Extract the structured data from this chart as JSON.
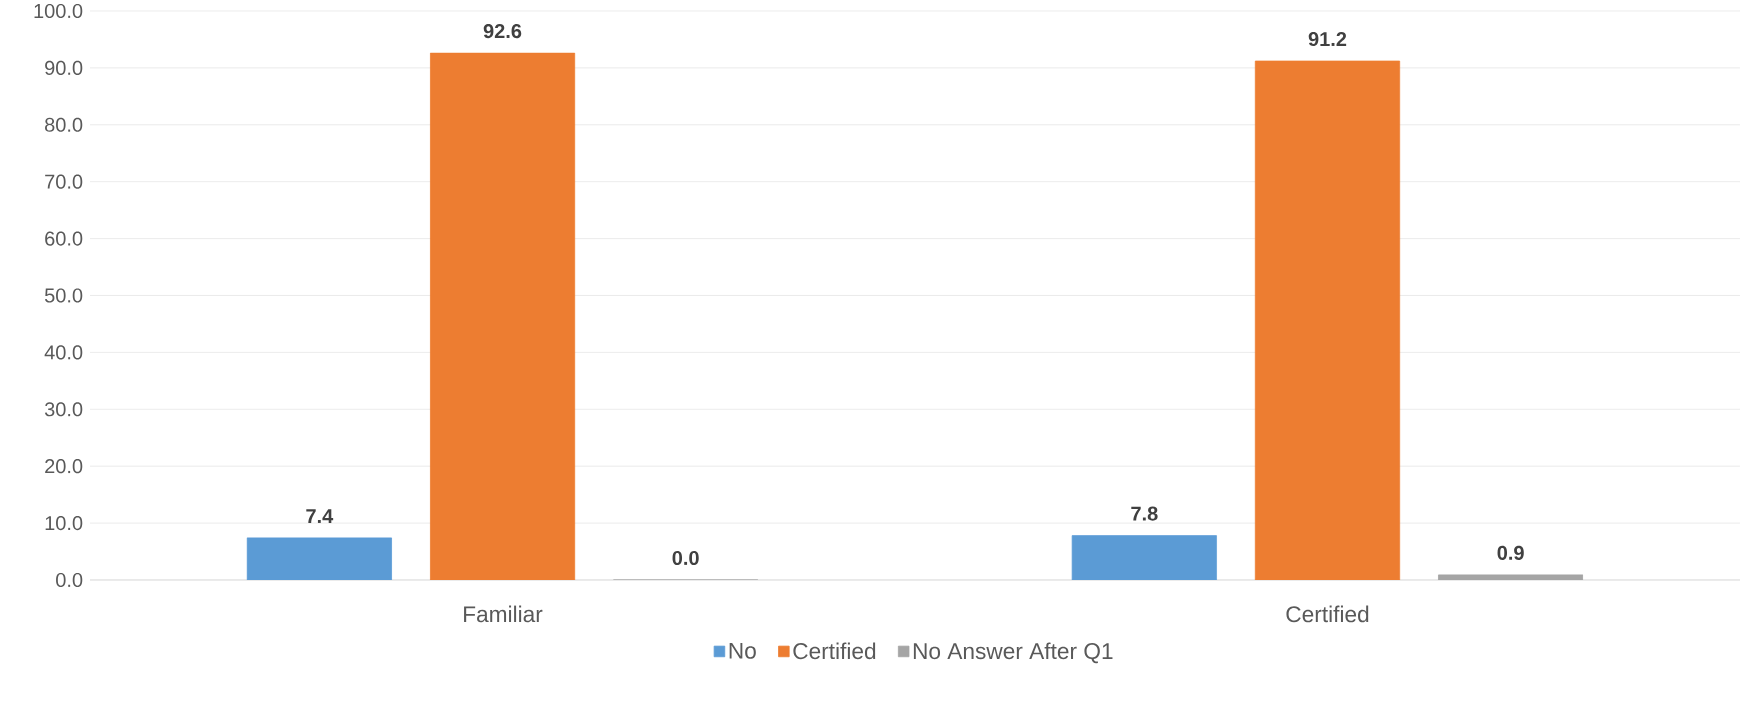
{
  "chart_data": {
    "type": "bar",
    "categories": [
      "Familiar",
      "Certified"
    ],
    "series": [
      {
        "name": "No",
        "color": "#5b9bd5",
        "values": [
          7.4,
          7.8
        ],
        "value_labels": [
          "7.4",
          "7.8"
        ]
      },
      {
        "name": "Certified",
        "color": "#ed7d31",
        "values": [
          92.6,
          91.2
        ],
        "value_labels": [
          "92.6",
          "91.2"
        ]
      },
      {
        "name": "No Answer After Q1",
        "color": "#a5a5a5",
        "values": [
          0.0,
          0.9
        ],
        "value_labels": [
          "0.0",
          "0.9"
        ]
      }
    ],
    "ylim": [
      0,
      100
    ],
    "yticks": [
      {
        "value": 0,
        "label": "0.0"
      },
      {
        "value": 10,
        "label": "10.0"
      },
      {
        "value": 20,
        "label": "20.0"
      },
      {
        "value": 30,
        "label": "30.0"
      },
      {
        "value": 40,
        "label": "40.0"
      },
      {
        "value": 50,
        "label": "50.0"
      },
      {
        "value": 60,
        "label": "60.0"
      },
      {
        "value": 70,
        "label": "70.0"
      },
      {
        "value": 80,
        "label": "80.0"
      },
      {
        "value": 90,
        "label": "90.0"
      },
      {
        "value": 100,
        "label": "100.0"
      }
    ],
    "grid": "y",
    "legend": "bottom"
  }
}
